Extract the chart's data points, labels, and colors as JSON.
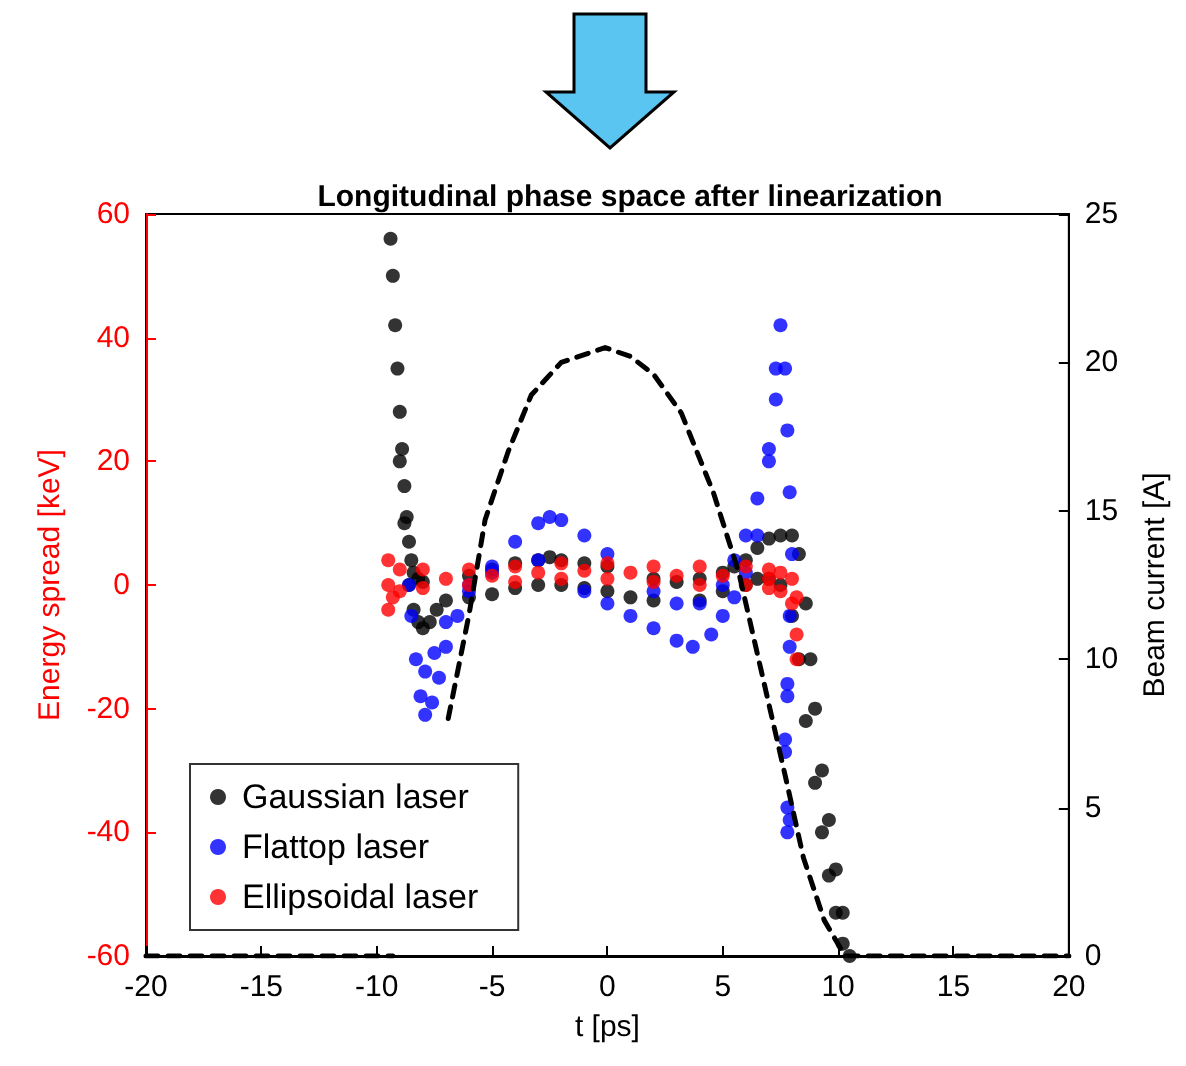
{
  "chart_data": {
    "type": "scatter",
    "title": "Longitudinal phase space after linearization",
    "xlabel": "t [ps]",
    "ylabel": "Energy spread [keV]",
    "y2label": "Beam current [A]",
    "xlim": [
      -20,
      20
    ],
    "xticks": [
      -20,
      -15,
      -10,
      -5,
      0,
      5,
      10,
      15,
      20
    ],
    "ylim": [
      -60,
      60
    ],
    "yticks": [
      -60,
      -40,
      -20,
      0,
      20,
      40,
      60
    ],
    "y2lim": [
      0,
      25
    ],
    "y2ticks": [
      0,
      5,
      10,
      15,
      20,
      25
    ],
    "grid": false,
    "legend": "bottom left",
    "marker": "circle",
    "series": [
      {
        "name": "Gaussian laser",
        "color": "#000000",
        "type": "scatter",
        "x": [
          -9.4,
          -9.3,
          -9.2,
          -9.1,
          -9.0,
          -8.9,
          -8.8,
          -8.7,
          -8.6,
          -8.5,
          -8.4,
          -8.2,
          -8.0,
          -9.0,
          -8.8,
          -8.6,
          -8.4,
          -8.2,
          -8.0,
          -7.7,
          -7.4,
          -7.0,
          -6.0,
          -5.0,
          -4.0,
          -3.0,
          -2.5,
          -2.0,
          -1.0,
          0.0,
          2.0,
          3.0,
          4.0,
          5.0,
          -6.0,
          -5.0,
          -4.0,
          -3.0,
          -2.0,
          -1.0,
          0.0,
          1.0,
          2.0,
          4.0,
          5.0,
          5.5,
          6.0,
          6.5,
          7.0,
          7.5,
          8.0,
          8.3,
          8.6,
          8.8,
          9.0,
          9.3,
          9.6,
          9.9,
          10.2,
          10.5,
          6.0,
          6.5,
          7.0,
          7.5,
          8.0,
          8.3,
          8.6,
          9.0,
          9.3,
          9.6,
          9.9,
          10.2
        ],
        "values": [
          56,
          50,
          42,
          35,
          28,
          22,
          16,
          11,
          7,
          4,
          2,
          1,
          0.5,
          20,
          10,
          0,
          -4,
          -6,
          -7,
          -6,
          -4,
          -2.5,
          1.5,
          2.5,
          3.5,
          4,
          4.5,
          4,
          3.5,
          3,
          1,
          0.5,
          1,
          2,
          -2,
          -1.5,
          -0.5,
          0,
          0,
          -0.5,
          -1,
          -2,
          -2.5,
          -2.5,
          -1,
          3,
          4,
          6,
          7.5,
          8,
          8,
          5,
          -3,
          -12,
          -20,
          -30,
          -38,
          -46,
          -53,
          -60,
          0,
          1,
          1,
          0,
          -5,
          -12,
          -22,
          -32,
          -40,
          -47,
          -53,
          -58
        ]
      },
      {
        "name": "Flattop laser",
        "color": "#0000ff",
        "type": "scatter",
        "x": [
          -8.6,
          -8.5,
          -8.3,
          -8.1,
          -7.9,
          -7.6,
          -7.3,
          -7.0,
          -6.5,
          -6.0,
          -5.0,
          -4.0,
          -3.0,
          -2.5,
          -2.0,
          -1.0,
          0.0,
          2.0,
          3.0,
          4.0,
          -7.9,
          -7.5,
          -7.0,
          -6.0,
          -5.0,
          -3.0,
          -1.0,
          0.0,
          1.0,
          2.0,
          3.0,
          3.7,
          4.5,
          5.0,
          5.5,
          6.0,
          6.5,
          7.0,
          7.3,
          7.5,
          7.7,
          7.8,
          7.9,
          8.0,
          7.9,
          7.9,
          5.0,
          5.5,
          6.0,
          6.5,
          7.0,
          7.3,
          7.8,
          7.8,
          7.7,
          7.7,
          7.8,
          7.9,
          7.8
        ],
        "values": [
          0,
          -5,
          -12,
          -18,
          -21,
          -19,
          -15,
          -10,
          -5,
          -1,
          3,
          7,
          10,
          11,
          10.5,
          8,
          5,
          -1,
          -3,
          -3,
          -14,
          -11,
          -6,
          0,
          2,
          4,
          -1,
          -3,
          -5,
          -7,
          -9,
          -10,
          -8,
          -5,
          -2,
          2,
          8,
          20,
          35,
          42,
          35,
          25,
          15,
          5,
          -5,
          -10,
          0,
          4,
          8,
          14,
          22,
          30,
          -16,
          -18,
          -25,
          -27,
          -36,
          -38,
          -40
        ]
      },
      {
        "name": "Ellipsoidal laser",
        "color": "#ff0000",
        "type": "scatter",
        "x": [
          -9.5,
          -9.0,
          -8.0,
          -6.0,
          -4.0,
          -2.0,
          0.0,
          2.0,
          4.0,
          6.0,
          7.0,
          7.5,
          8.0,
          8.2,
          -9.5,
          -9.3,
          -9.0,
          -8.0,
          -6.0,
          -4.0,
          -2.0,
          0.0,
          2.0,
          4.0,
          6.0,
          7.0,
          7.5,
          8.0,
          8.2,
          8.2,
          -9.5,
          -7.0,
          -5.0,
          -3.0,
          -1.0,
          1.0,
          3.0,
          5.0,
          7.0
        ],
        "values": [
          4,
          2.5,
          2.5,
          2.5,
          3,
          3.5,
          3.5,
          3,
          3,
          3,
          2.5,
          2,
          1,
          -2,
          -4,
          -2,
          -1,
          -0.5,
          0,
          0.5,
          1,
          1,
          0.5,
          0,
          0,
          -0.5,
          -1,
          -3,
          -8,
          -12,
          0,
          1,
          1.5,
          2,
          2.3,
          2,
          1.5,
          1.5,
          1
        ]
      },
      {
        "color": "#000000",
        "type": "line",
        "axis": "y2",
        "marker": "none",
        "line_style": "dashed",
        "x": [
          -20,
          -9.3,
          -8.6,
          -7.8,
          -6.9,
          -6.0,
          -5.3,
          -4.3,
          -3.3,
          -2.0,
          -0.1,
          1.0,
          2.0,
          3.2,
          4.6,
          5.7,
          6.7,
          7.7,
          8.5,
          9.4,
          10.3,
          20
        ],
        "values": [
          0,
          0,
          null,
          null,
          8,
          11.5,
          14.7,
          17,
          18.9,
          20,
          20.5,
          20.2,
          19.6,
          18.3,
          15.6,
          12.9,
          9.5,
          6.1,
          3.3,
          1.2,
          0,
          0
        ]
      }
    ]
  }
}
